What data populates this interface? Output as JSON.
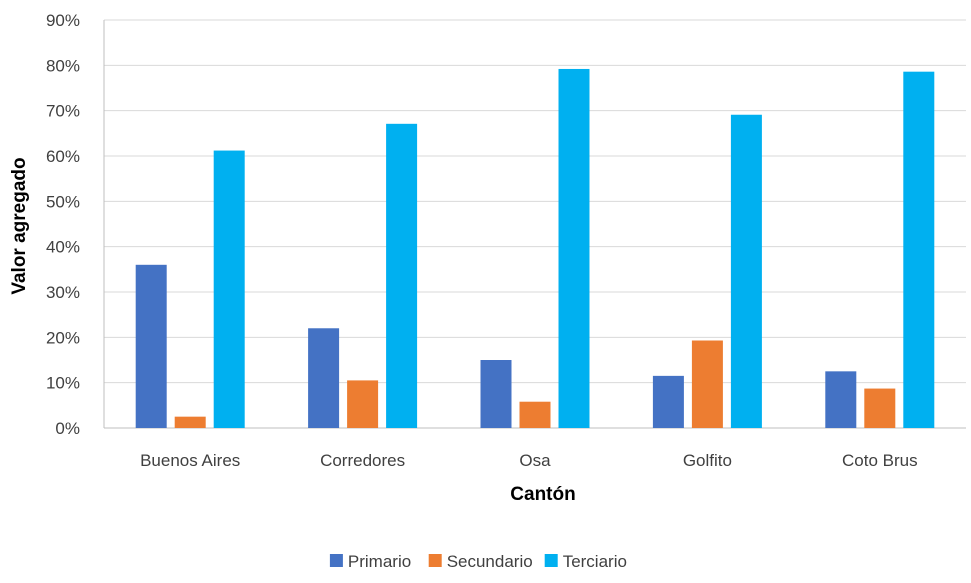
{
  "chart_data": {
    "type": "bar",
    "title": "",
    "xlabel": "Cantón",
    "ylabel": "Valor agregado",
    "categories": [
      "Buenos Aires",
      "Corredores",
      "Osa",
      "Golfito",
      "Coto Brus"
    ],
    "series": [
      {
        "name": "Primario",
        "color": "#4472C4",
        "values": [
          0.36,
          0.22,
          0.15,
          0.115,
          0.125
        ]
      },
      {
        "name": "Secundario",
        "color": "#ED7D31",
        "values": [
          0.025,
          0.105,
          0.058,
          0.193,
          0.087
        ]
      },
      {
        "name": "Terciario",
        "color": "#00B0F0",
        "values": [
          0.612,
          0.671,
          0.792,
          0.691,
          0.786
        ]
      }
    ],
    "ylim": [
      0,
      0.9
    ],
    "yticks": [
      "0%",
      "10%",
      "20%",
      "30%",
      "40%",
      "50%",
      "60%",
      "70%",
      "80%",
      "90%"
    ],
    "grid": true,
    "legend_position": "bottom"
  }
}
